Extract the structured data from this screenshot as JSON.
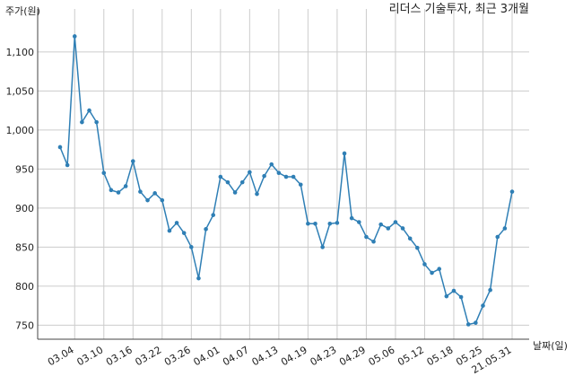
{
  "chart_data": {
    "type": "line",
    "title": "리더스 기술투자, 최근 3개월",
    "y_label": "주가(원)",
    "x_label": "날짜(일)",
    "categories": [
      null,
      null,
      "03.04",
      null,
      null,
      null,
      "03.10",
      null,
      null,
      null,
      "03.16",
      null,
      null,
      null,
      "03.22",
      null,
      null,
      null,
      "03.26",
      null,
      null,
      null,
      "04.01",
      null,
      null,
      null,
      "04.07",
      null,
      null,
      null,
      "04.13",
      null,
      null,
      null,
      "04.19",
      null,
      null,
      null,
      "04.23",
      null,
      null,
      null,
      "04.29",
      null,
      null,
      null,
      "05.06",
      null,
      null,
      null,
      "05.12",
      null,
      null,
      null,
      "05.18",
      null,
      null,
      null,
      "05.25",
      null,
      null,
      null,
      "21.05.31"
    ],
    "series": [
      {
        "name": "주가",
        "color": "#2f7fb5",
        "values": [
          978,
          955,
          1120,
          1010,
          1025,
          1010,
          945,
          923,
          920,
          928,
          960,
          921,
          910,
          919,
          910,
          871,
          881,
          868,
          850,
          810,
          873,
          891,
          940,
          933,
          920,
          933,
          946,
          918,
          941,
          956,
          945,
          940,
          940,
          930,
          880,
          880,
          850,
          880,
          881,
          970,
          887,
          882,
          863,
          857,
          879,
          874,
          882,
          874,
          861,
          849,
          828,
          817,
          822,
          787,
          794,
          786,
          751,
          753,
          775,
          795,
          863,
          874,
          921
        ]
      }
    ],
    "ylim": [
      732,
      1155
    ],
    "yticks": [
      750,
      800,
      850,
      900,
      950,
      {
        "value": 1000,
        "label": "1,000"
      },
      {
        "value": 1050,
        "label": "1,050"
      },
      {
        "value": 1100,
        "label": "1,100"
      }
    ],
    "grid": true
  }
}
